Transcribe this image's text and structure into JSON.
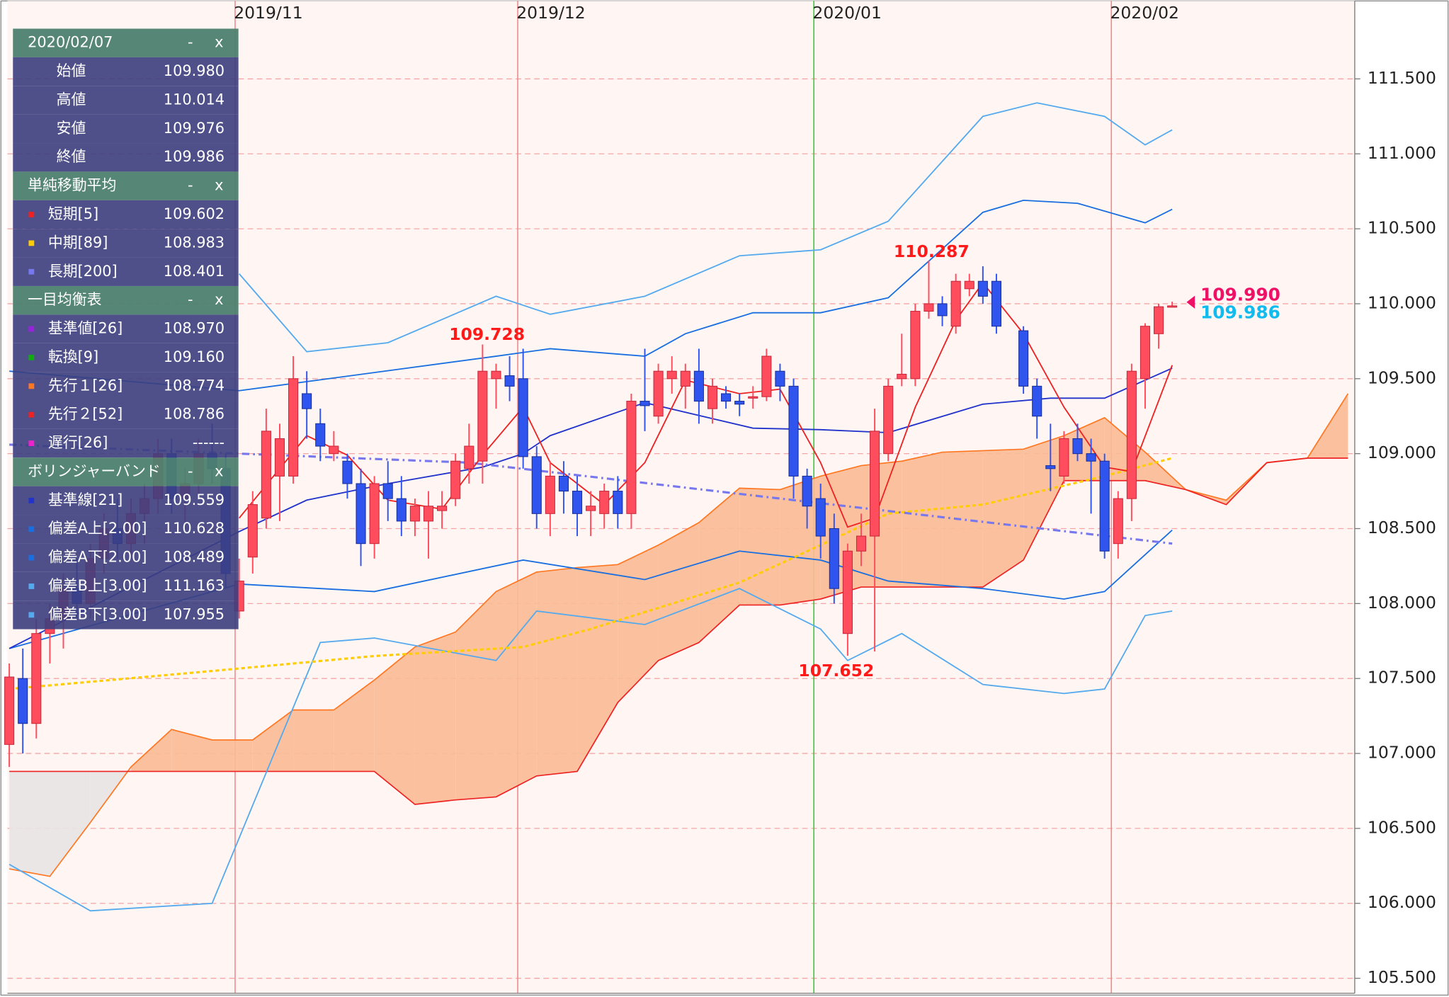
{
  "chart_data": {
    "type": "candlestick",
    "xlim": [
      -0.14,
      99.5
    ],
    "ylim": [
      105.4,
      112.02
    ],
    "yticks": [
      {
        "value": 105.5,
        "label": "105.500"
      },
      {
        "value": 106,
        "label": "106.000"
      },
      {
        "value": 106.5,
        "label": "106.500"
      },
      {
        "value": 107,
        "label": "107.000"
      },
      {
        "value": 107.5,
        "label": "107.500"
      },
      {
        "value": 108,
        "label": "108.000"
      },
      {
        "value": 108.5,
        "label": "108.500"
      },
      {
        "value": 109,
        "label": "109.000"
      },
      {
        "value": 109.5,
        "label": "109.500"
      },
      {
        "value": 110,
        "label": "110.000"
      },
      {
        "value": 110.5,
        "label": "110.500"
      },
      {
        "value": 111,
        "label": "111.000"
      },
      {
        "value": 111.5,
        "label": "111.500"
      }
    ],
    "xticks": [
      {
        "value": 16.7,
        "label": "2019/11"
      },
      {
        "value": 37.6,
        "label": "2019/12"
      },
      {
        "value": 59.5,
        "label": "2020/01"
      },
      {
        "value": 81.5,
        "label": "2020/02"
      }
    ],
    "xtick_line_colors": [
      "#f08a8a",
      "#f08a8a",
      "#33cc33",
      "#f08a8a"
    ],
    "grid": true,
    "up_color": "#ff4d5e",
    "down_color": "#2f55ee",
    "candles": [
      [
        107.06,
        107.6,
        106.91,
        107.51
      ],
      [
        107.5,
        107.7,
        107.0,
        107.2
      ],
      [
        107.2,
        107.9,
        107.1,
        107.8
      ],
      [
        107.8,
        108.0,
        107.6,
        107.9
      ],
      [
        107.9,
        108.2,
        107.7,
        108.1
      ],
      [
        108.1,
        108.3,
        107.9,
        108.0
      ],
      [
        108.0,
        108.4,
        107.9,
        108.3
      ],
      [
        108.3,
        108.6,
        108.2,
        108.5
      ],
      [
        108.5,
        108.7,
        108.3,
        108.4
      ],
      [
        108.4,
        108.7,
        108.3,
        108.6
      ],
      [
        108.6,
        108.8,
        108.4,
        108.7
      ],
      [
        108.7,
        109.1,
        108.6,
        109.0
      ],
      [
        109.0,
        109.1,
        108.6,
        108.7
      ],
      [
        108.7,
        108.9,
        108.5,
        108.8
      ],
      [
        108.8,
        109.1,
        108.7,
        109.0
      ],
      [
        109.0,
        109.2,
        108.8,
        108.9
      ],
      [
        108.9,
        109.0,
        108.1,
        108.2
      ],
      [
        107.95,
        108.3,
        107.9,
        108.15
      ],
      [
        108.31,
        108.75,
        108.2,
        108.66
      ],
      [
        108.57,
        109.3,
        108.5,
        109.15
      ],
      [
        108.85,
        109.2,
        108.55,
        109.1
      ],
      [
        108.85,
        109.65,
        108.8,
        109.5
      ],
      [
        109.4,
        109.55,
        109.1,
        109.3
      ],
      [
        109.2,
        109.3,
        108.95,
        109.05
      ],
      [
        109.0,
        109.15,
        108.95,
        109.05
      ],
      [
        108.95,
        109.0,
        108.7,
        108.8
      ],
      [
        108.8,
        108.9,
        108.25,
        108.4
      ],
      [
        108.4,
        108.85,
        108.3,
        108.8
      ],
      [
        108.8,
        108.95,
        108.55,
        108.7
      ],
      [
        108.7,
        108.85,
        108.45,
        108.55
      ],
      [
        108.55,
        108.7,
        108.45,
        108.65
      ],
      [
        108.55,
        108.75,
        108.3,
        108.65
      ],
      [
        108.62,
        108.75,
        108.5,
        108.65
      ],
      [
        108.7,
        109.0,
        108.65,
        108.95
      ],
      [
        108.9,
        109.2,
        108.8,
        109.05
      ],
      [
        108.95,
        109.728,
        108.8,
        109.55
      ],
      [
        109.5,
        109.6,
        109.3,
        109.55
      ],
      [
        109.52,
        109.65,
        109.35,
        109.45
      ],
      [
        109.5,
        109.7,
        108.9,
        108.98
      ],
      [
        108.98,
        109.05,
        108.5,
        108.6
      ],
      [
        108.6,
        108.95,
        108.45,
        108.85
      ],
      [
        108.85,
        108.95,
        108.6,
        108.75
      ],
      [
        108.75,
        108.85,
        108.45,
        108.6
      ],
      [
        108.62,
        108.75,
        108.45,
        108.65
      ],
      [
        108.6,
        108.8,
        108.5,
        108.75
      ],
      [
        108.75,
        108.85,
        108.5,
        108.6
      ],
      [
        108.6,
        109.4,
        108.5,
        109.35
      ],
      [
        109.35,
        109.7,
        109.15,
        109.32
      ],
      [
        109.25,
        109.6,
        109.2,
        109.55
      ],
      [
        109.5,
        109.65,
        109.4,
        109.55
      ],
      [
        109.45,
        109.6,
        109.3,
        109.55
      ],
      [
        109.55,
        109.7,
        109.2,
        109.35
      ],
      [
        109.3,
        109.5,
        109.2,
        109.45
      ],
      [
        109.4,
        109.45,
        109.3,
        109.35
      ],
      [
        109.35,
        109.4,
        109.25,
        109.33
      ],
      [
        109.37,
        109.45,
        109.3,
        109.38
      ],
      [
        109.38,
        109.7,
        109.35,
        109.65
      ],
      [
        109.55,
        109.6,
        109.35,
        109.45
      ],
      [
        109.45,
        109.5,
        108.7,
        108.85
      ],
      [
        108.85,
        108.9,
        108.5,
        108.65
      ],
      [
        108.7,
        108.8,
        108.3,
        108.45
      ],
      [
        108.5,
        108.6,
        108.0,
        108.1
      ],
      [
        107.8,
        108.4,
        107.652,
        108.35
      ],
      [
        108.35,
        108.6,
        108.25,
        108.45
      ],
      [
        108.45,
        109.3,
        107.68,
        109.15
      ],
      [
        109.0,
        109.5,
        108.95,
        109.45
      ],
      [
        109.5,
        109.8,
        109.45,
        109.53
      ],
      [
        109.5,
        110.0,
        109.45,
        109.95
      ],
      [
        109.95,
        110.287,
        109.9,
        110.0
      ],
      [
        110.0,
        110.05,
        109.85,
        109.92
      ],
      [
        109.85,
        110.2,
        109.8,
        110.15
      ],
      [
        110.1,
        110.2,
        110.05,
        110.15
      ],
      [
        110.15,
        110.25,
        110.0,
        110.05
      ],
      [
        110.15,
        110.2,
        109.8,
        109.85
      ],
      null,
      [
        109.82,
        109.85,
        109.4,
        109.45
      ],
      [
        109.45,
        109.5,
        109.1,
        109.25
      ],
      [
        108.92,
        109.2,
        108.75,
        108.9
      ],
      [
        108.85,
        109.15,
        108.8,
        109.1
      ],
      [
        109.1,
        109.2,
        108.95,
        109.0
      ],
      [
        109.0,
        109.1,
        108.6,
        108.95
      ],
      [
        108.95,
        109.0,
        108.3,
        108.35
      ],
      [
        108.4,
        108.75,
        108.3,
        108.7
      ],
      [
        108.7,
        109.6,
        108.55,
        109.55
      ],
      [
        109.5,
        109.87,
        109.3,
        109.85
      ],
      [
        109.8,
        110.0,
        109.7,
        109.98
      ],
      [
        109.98,
        110.014,
        109.976,
        109.986
      ]
    ],
    "cloud": {
      "x": [
        0,
        3,
        6,
        9,
        12,
        15,
        18,
        21,
        24,
        27,
        30,
        33,
        36,
        39,
        42,
        45,
        48,
        51,
        54,
        57,
        60,
        63,
        66,
        69,
        72,
        75,
        78,
        81,
        84,
        87,
        90,
        93,
        96,
        99
      ],
      "span_a": [
        106.23,
        106.18,
        106.54,
        106.91,
        107.16,
        107.09,
        107.09,
        107.29,
        107.29,
        107.49,
        107.71,
        107.81,
        108.08,
        108.21,
        108.24,
        108.26,
        108.39,
        108.54,
        108.77,
        108.76,
        108.85,
        108.92,
        108.95,
        109.01,
        109.02,
        109.03,
        109.12,
        109.24,
        109.01,
        108.76,
        108.69,
        108.94,
        108.97,
        109.4
      ],
      "span_b": [
        106.88,
        106.88,
        106.88,
        106.88,
        106.88,
        106.88,
        106.88,
        106.88,
        106.88,
        106.88,
        106.66,
        106.69,
        106.71,
        106.85,
        106.88,
        107.34,
        107.62,
        107.74,
        107.99,
        107.99,
        108.03,
        108.11,
        108.11,
        108.11,
        108.11,
        108.29,
        108.82,
        108.82,
        108.82,
        108.76,
        108.66,
        108.94,
        108.97,
        108.97
      ],
      "color_a": "#ff7722",
      "color_b": "#ee2222",
      "fill_up": "#fbbb95",
      "fill_down": "#e9e4e4"
    },
    "lines": [
      {
        "color": "#55aaee",
        "dash": "none",
        "x": [
          17,
          22,
          28,
          36,
          40,
          47,
          54,
          60,
          65,
          72,
          76,
          81,
          84,
          86
        ],
        "values": [
          110.2,
          109.68,
          109.74,
          110.05,
          109.93,
          110.05,
          110.32,
          110.36,
          110.55,
          111.25,
          111.34,
          111.25,
          111.06,
          111.16
        ]
      },
      {
        "color": "#55aaee",
        "dash": "none",
        "x": [
          0,
          6,
          15,
          20,
          23,
          27,
          36,
          39,
          47,
          54,
          60,
          62,
          66,
          72,
          78,
          81,
          84,
          86
        ],
        "values": [
          106.26,
          105.95,
          106.0,
          107.09,
          107.74,
          107.77,
          107.62,
          107.95,
          107.86,
          108.1,
          107.83,
          107.62,
          107.8,
          107.46,
          107.4,
          107.43,
          107.92,
          107.95
        ]
      },
      {
        "color": "#1a6fe0",
        "dash": "none",
        "x": [
          0,
          17,
          36,
          40,
          47,
          50,
          55,
          60,
          65,
          72,
          75,
          79,
          84,
          86
        ],
        "values": [
          109.55,
          109.42,
          109.65,
          109.7,
          109.65,
          109.8,
          109.94,
          109.94,
          110.04,
          110.61,
          110.69,
          110.67,
          110.54,
          110.63
        ]
      },
      {
        "color": "#1a6fe0",
        "dash": "none",
        "x": [
          0,
          17,
          27,
          38,
          47,
          54,
          60,
          65,
          72,
          78,
          81,
          86
        ],
        "values": [
          107.7,
          108.13,
          108.08,
          108.29,
          108.16,
          108.35,
          108.29,
          108.15,
          108.1,
          108.03,
          108.08,
          108.49
        ]
      },
      {
        "color": "#2233cc",
        "dash": "none",
        "x": [
          0,
          17,
          22,
          28,
          35,
          38,
          40,
          47,
          55,
          60,
          65,
          72,
          77,
          81,
          86
        ],
        "values": [
          107.7,
          108.48,
          108.69,
          108.8,
          108.91,
          109.0,
          109.12,
          109.34,
          109.17,
          109.16,
          109.14,
          109.33,
          109.37,
          109.37,
          109.57
        ]
      },
      {
        "color": "#ffcc00",
        "dash": "4 3",
        "x": [
          0,
          15,
          27,
          38,
          43,
          54,
          60,
          65,
          72,
          81,
          86
        ],
        "values": [
          107.43,
          107.55,
          107.65,
          107.71,
          107.83,
          108.14,
          108.39,
          108.6,
          108.66,
          108.85,
          108.97
        ]
      },
      {
        "color": "#7777ee",
        "dash": "8 4 2 4",
        "x": [
          0,
          34,
          58,
          86
        ],
        "values": [
          109.06,
          108.94,
          108.69,
          108.4
        ]
      },
      {
        "color": "#ee2222",
        "dash": "none",
        "x": [
          17,
          22,
          25,
          28,
          32,
          35,
          38,
          40,
          44,
          47,
          50,
          54,
          57,
          60,
          62,
          64,
          67,
          70,
          72,
          75,
          78,
          81,
          83,
          86
        ],
        "values": [
          108.57,
          109.12,
          108.99,
          108.69,
          108.63,
          108.99,
          109.31,
          108.94,
          108.66,
          108.94,
          109.49,
          109.4,
          109.43,
          108.94,
          108.51,
          108.57,
          109.31,
          109.89,
          110.14,
          109.8,
          109.31,
          108.91,
          108.88,
          109.59
        ]
      }
    ],
    "annotations": [
      "109.728",
      "110.287",
      "107.652"
    ],
    "price_labels": [
      {
        "text": "109.990",
        "color": "#ee1166"
      },
      {
        "text": "109.986",
        "color": "#11bbee"
      }
    ],
    "panel": {
      "date": "2020/02/07",
      "controls": [
        "-",
        "x"
      ],
      "ohlc": [
        [
          "始値",
          "109.980"
        ],
        [
          "高値",
          "110.014"
        ],
        [
          "安値",
          "109.976"
        ],
        [
          "終値",
          "109.986"
        ]
      ],
      "sections": [
        {
          "title": "単純移動平均",
          "rows": [
            {
              "label": "短期[5]",
              "value": "109.602",
              "color": "#ee2222"
            },
            {
              "label": "中期[89]",
              "value": "108.983",
              "color": "#ffcc00"
            },
            {
              "label": "長期[200]",
              "value": "108.401",
              "color": "#7777ee"
            }
          ]
        },
        {
          "title": "一目均衡表",
          "rows": [
            {
              "label": "基準値[26]",
              "value": "108.970",
              "color": "#9922dd"
            },
            {
              "label": "転換[9]",
              "value": "109.160",
              "color": "#11aa11"
            },
            {
              "label": "先行１[26]",
              "value": "108.774",
              "color": "#ff7722"
            },
            {
              "label": "先行２[52]",
              "value": "108.786",
              "color": "#ee2222"
            },
            {
              "label": "遅行[26]",
              "value": "------",
              "color": "#ee22cc"
            }
          ]
        },
        {
          "title": "ボリンジャーバンド",
          "rows": [
            {
              "label": "基準線[21]",
              "value": "109.559",
              "color": "#2233cc"
            },
            {
              "label": "偏差A上[2.00]",
              "value": "110.628",
              "color": "#1a6fe0"
            },
            {
              "label": "偏差A下[2.00]",
              "value": "108.489",
              "color": "#1a6fe0"
            },
            {
              "label": "偏差B上[3.00]",
              "value": "111.163",
              "color": "#55aaee"
            },
            {
              "label": "偏差B下[3.00]",
              "value": "107.955",
              "color": "#55aaee"
            }
          ]
        }
      ]
    }
  }
}
